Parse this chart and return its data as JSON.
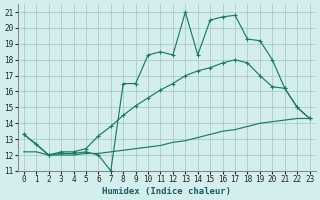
{
  "xlabel": "Humidex (Indice chaleur)",
  "bg_color": "#d4eeee",
  "grid_color": "#a8cccc",
  "line_color": "#1a7a6a",
  "xlim": [
    -0.5,
    23.5
  ],
  "ylim": [
    11,
    21.5
  ],
  "xticks": [
    0,
    1,
    2,
    3,
    4,
    5,
    6,
    7,
    8,
    9,
    10,
    11,
    12,
    13,
    14,
    15,
    16,
    17,
    18,
    19,
    20,
    21,
    22,
    23
  ],
  "yticks": [
    11,
    12,
    13,
    14,
    15,
    16,
    17,
    18,
    19,
    20,
    21
  ],
  "line1_x": [
    0,
    1,
    2,
    3,
    4,
    5,
    6,
    7,
    8,
    9,
    10,
    11,
    12,
    13,
    14,
    15,
    16,
    17,
    18,
    19,
    20,
    21,
    22,
    23
  ],
  "line1_y": [
    13.3,
    12.7,
    12.0,
    12.1,
    12.1,
    12.2,
    12.0,
    11.0,
    16.5,
    16.5,
    18.3,
    18.5,
    18.3,
    21.0,
    18.3,
    20.5,
    20.7,
    20.8,
    19.3,
    19.2,
    18.0,
    16.2,
    15.0,
    14.3
  ],
  "line2_x": [
    0,
    2,
    3,
    4,
    5,
    6,
    7,
    8,
    9,
    10,
    11,
    12,
    13,
    14,
    15,
    16,
    17,
    18,
    19,
    20,
    21,
    22,
    23
  ],
  "line2_y": [
    13.3,
    12.0,
    12.2,
    12.2,
    12.4,
    13.2,
    13.8,
    14.5,
    15.1,
    15.6,
    16.1,
    16.5,
    17.0,
    17.3,
    17.5,
    17.8,
    18.0,
    17.8,
    17.0,
    16.3,
    16.2,
    15.0,
    14.3
  ],
  "line3_x": [
    0,
    1,
    2,
    3,
    4,
    5,
    6,
    7,
    8,
    9,
    10,
    11,
    12,
    13,
    14,
    15,
    16,
    17,
    18,
    19,
    20,
    21,
    22,
    23
  ],
  "line3_y": [
    12.2,
    12.2,
    12.0,
    12.0,
    12.0,
    12.1,
    12.1,
    12.2,
    12.3,
    12.4,
    12.5,
    12.6,
    12.8,
    12.9,
    13.1,
    13.3,
    13.5,
    13.6,
    13.8,
    14.0,
    14.1,
    14.2,
    14.3,
    14.3
  ]
}
